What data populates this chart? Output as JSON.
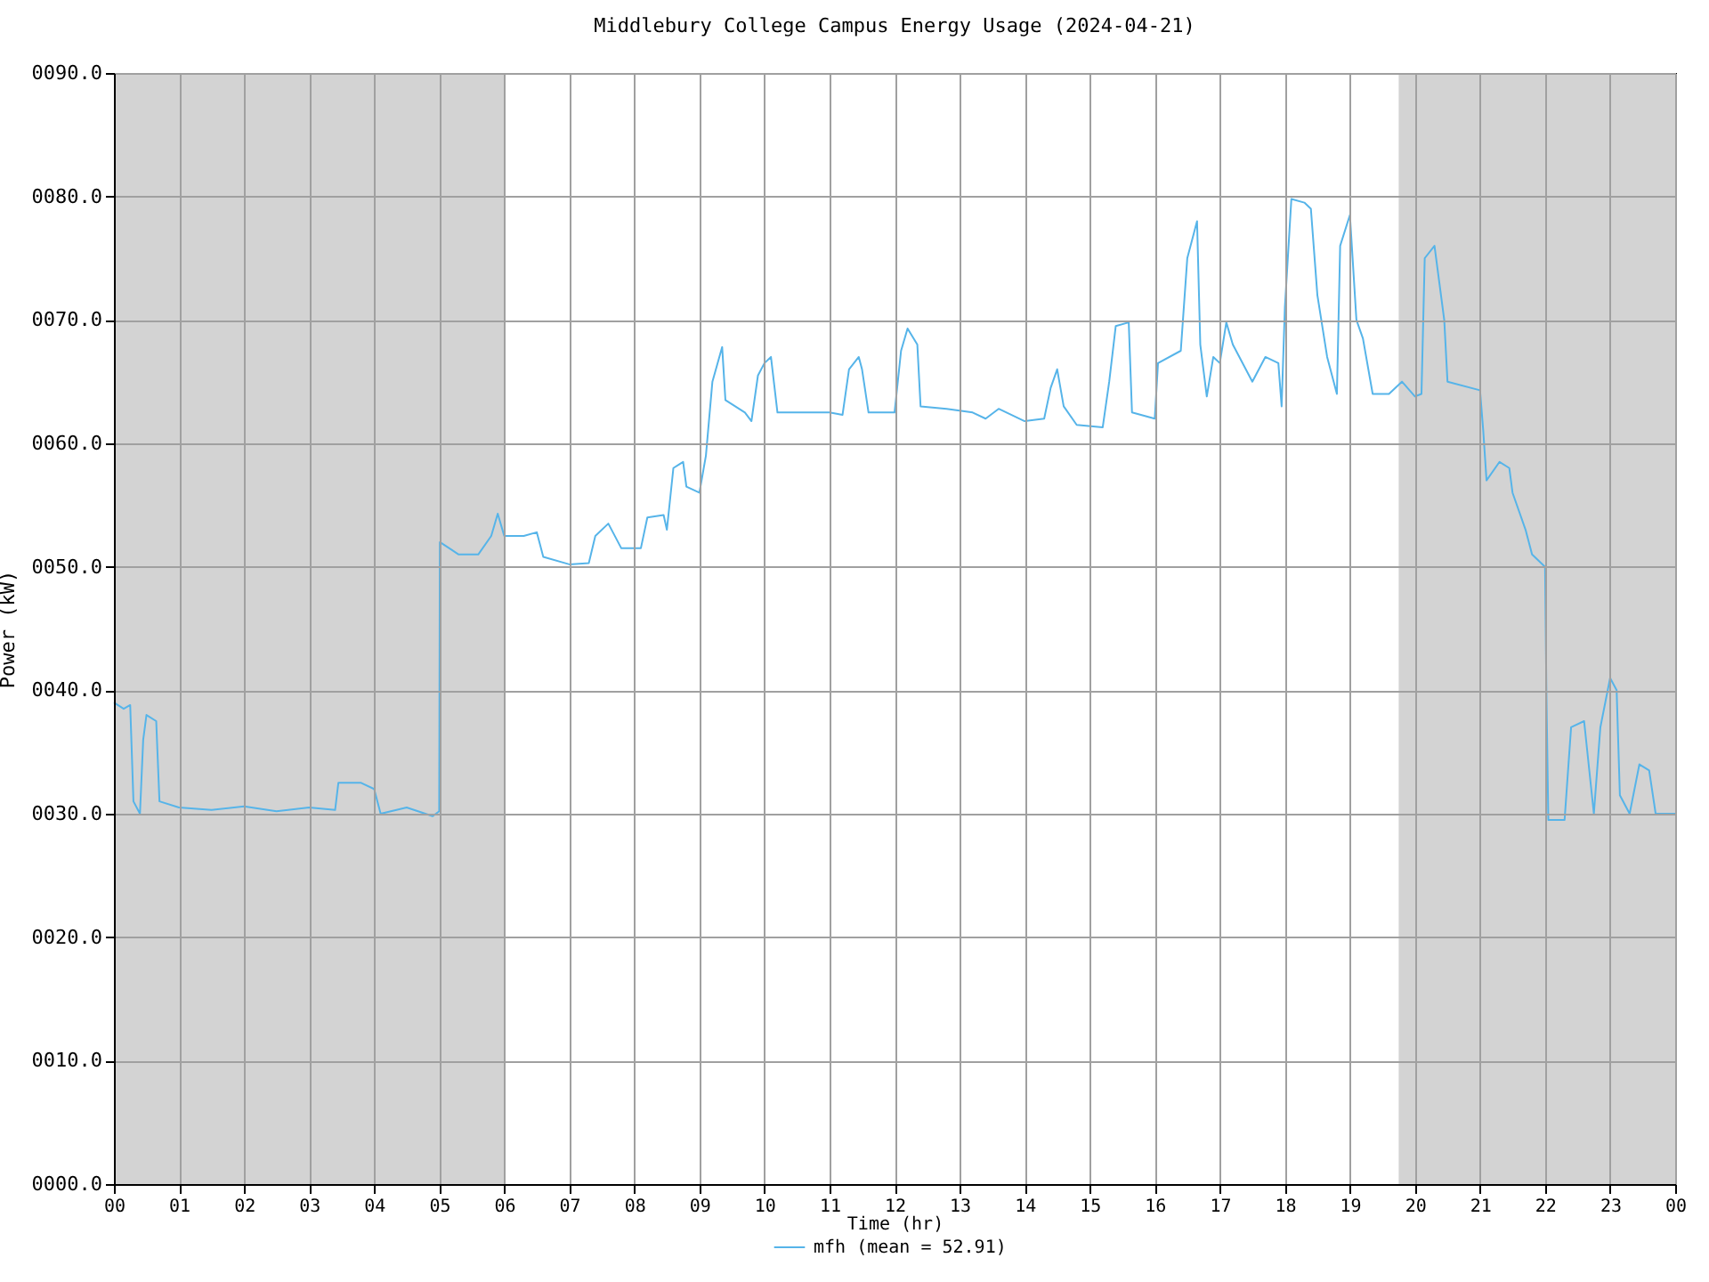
{
  "chart_data": {
    "type": "line",
    "title": "Middlebury College Campus Energy Usage (2024-04-21)",
    "xlabel": "Time (hr)",
    "ylabel": "Power (kW)",
    "xlim": [
      0,
      24
    ],
    "ylim": [
      0,
      90
    ],
    "xticks": [
      {
        "value": 0,
        "label": "00"
      },
      {
        "value": 1,
        "label": "01"
      },
      {
        "value": 2,
        "label": "02"
      },
      {
        "value": 3,
        "label": "03"
      },
      {
        "value": 4,
        "label": "04"
      },
      {
        "value": 5,
        "label": "05"
      },
      {
        "value": 6,
        "label": "06"
      },
      {
        "value": 7,
        "label": "07"
      },
      {
        "value": 8,
        "label": "08"
      },
      {
        "value": 9,
        "label": "09"
      },
      {
        "value": 10,
        "label": "10"
      },
      {
        "value": 11,
        "label": "11"
      },
      {
        "value": 12,
        "label": "12"
      },
      {
        "value": 13,
        "label": "13"
      },
      {
        "value": 14,
        "label": "14"
      },
      {
        "value": 15,
        "label": "15"
      },
      {
        "value": 16,
        "label": "16"
      },
      {
        "value": 17,
        "label": "17"
      },
      {
        "value": 18,
        "label": "18"
      },
      {
        "value": 19,
        "label": "19"
      },
      {
        "value": 20,
        "label": "20"
      },
      {
        "value": 21,
        "label": "21"
      },
      {
        "value": 22,
        "label": "22"
      },
      {
        "value": 23,
        "label": "23"
      },
      {
        "value": 24,
        "label": "00"
      }
    ],
    "yticks": [
      {
        "value": 0,
        "label": "0000.0"
      },
      {
        "value": 10,
        "label": "0010.0"
      },
      {
        "value": 20,
        "label": "0020.0"
      },
      {
        "value": 30,
        "label": "0030.0"
      },
      {
        "value": 40,
        "label": "0040.0"
      },
      {
        "value": 50,
        "label": "0050.0"
      },
      {
        "value": 60,
        "label": "0060.0"
      },
      {
        "value": 70,
        "label": "0070.0"
      },
      {
        "value": 80,
        "label": "0080.0"
      },
      {
        "value": 90,
        "label": "0090.0"
      }
    ],
    "grid": true,
    "legend": "bottom",
    "bands": [
      {
        "axis": "x",
        "from": 0,
        "to": 6,
        "color": "#d3d3d3"
      },
      {
        "axis": "x",
        "from": 19.75,
        "to": 24,
        "color": "#d3d3d3"
      }
    ],
    "series": [
      {
        "name": "mfh (mean = 52.91)",
        "color": "#56b4e9",
        "x": [
          0,
          0.15,
          0.25,
          0.3,
          0.4,
          0.45,
          0.5,
          0.65,
          0.7,
          1.0,
          1.5,
          2.0,
          2.5,
          3.0,
          3.4,
          3.45,
          3.8,
          4.0,
          4.1,
          4.5,
          4.9,
          5.0,
          5.01,
          5.3,
          5.6,
          5.8,
          5.9,
          6.0,
          6.3,
          6.5,
          6.6,
          7.0,
          7.3,
          7.4,
          7.6,
          7.8,
          8.1,
          8.2,
          8.45,
          8.5,
          8.6,
          8.75,
          8.8,
          9.0,
          9.1,
          9.2,
          9.35,
          9.4,
          9.7,
          9.8,
          9.9,
          10.0,
          10.1,
          10.2,
          10.5,
          11.0,
          11.2,
          11.3,
          11.45,
          11.5,
          11.6,
          12.0,
          12.1,
          12.2,
          12.35,
          12.4,
          12.8,
          13.2,
          13.4,
          13.6,
          14.0,
          14.3,
          14.4,
          14.5,
          14.6,
          14.8,
          15.2,
          15.3,
          15.4,
          15.6,
          15.65,
          16.0,
          16.05,
          16.4,
          16.5,
          16.65,
          16.7,
          16.8,
          16.9,
          17.0,
          17.1,
          17.2,
          17.5,
          17.7,
          17.9,
          17.95,
          18.0,
          18.1,
          18.3,
          18.4,
          18.5,
          18.65,
          18.8,
          18.85,
          19.0,
          19.1,
          19.2,
          19.35,
          19.6,
          19.8,
          20.0,
          20.1,
          20.15,
          20.3,
          20.45,
          20.5,
          21.0,
          21.05,
          21.1,
          21.3,
          21.45,
          21.5,
          21.6,
          21.7,
          21.8,
          22.0,
          22.02,
          22.05,
          22.3,
          22.4,
          22.6,
          22.75,
          22.85,
          23.0,
          23.1,
          23.15,
          23.3,
          23.45,
          23.6,
          23.7,
          24.0
        ],
        "values": [
          39,
          38.5,
          38.8,
          31,
          30,
          36,
          38,
          37.5,
          31,
          30.5,
          30.3,
          30.6,
          30.2,
          30.5,
          30.3,
          32.5,
          32.5,
          32,
          30,
          30.5,
          29.8,
          30.2,
          52,
          51,
          51,
          52.5,
          54.3,
          52.5,
          52.5,
          52.8,
          50.8,
          50.2,
          50.3,
          52.5,
          53.5,
          51.5,
          51.5,
          54,
          54.2,
          53,
          58,
          58.5,
          56.5,
          56,
          59,
          65,
          67.8,
          63.5,
          62.5,
          61.8,
          65.5,
          66.5,
          67,
          62.5,
          62.5,
          62.5,
          62.3,
          66,
          67,
          66,
          62.5,
          62.5,
          67.5,
          69.3,
          68,
          63,
          62.8,
          62.5,
          62,
          62.8,
          61.8,
          62,
          64.5,
          66,
          63,
          61.5,
          61.3,
          65,
          69.5,
          69.8,
          62.5,
          62,
          66.5,
          67.5,
          75,
          78,
          68,
          63.8,
          67,
          66.5,
          69.8,
          68,
          65,
          67,
          66.5,
          63,
          71,
          79.8,
          79.5,
          79,
          72,
          67,
          64,
          76,
          78.5,
          70,
          68.5,
          64,
          64,
          65,
          63.8,
          64,
          75,
          76,
          70,
          65,
          64.3,
          61,
          57,
          58.5,
          58,
          56,
          54.5,
          53,
          51,
          50,
          40,
          29.5,
          29.5,
          37,
          37.5,
          30,
          37,
          41,
          40,
          31.5,
          30,
          34,
          33.5,
          30,
          30
        ]
      }
    ]
  }
}
